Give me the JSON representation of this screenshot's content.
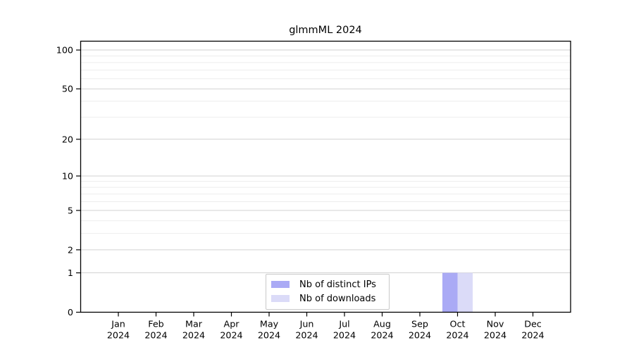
{
  "figure_title": "glmmML 2024",
  "colors": {
    "background": "#ffffff",
    "axis": "#000000",
    "grid_major": "#d2d2d2",
    "grid_minor": "#ededed",
    "legend_border": "#c9c9c9",
    "text": "#000000",
    "bar_distinct_ips": "#aaaaf5",
    "bar_downloads": "#dbdbf8"
  },
  "chart_data": {
    "type": "bar",
    "title": "glmmML 2024",
    "categories": [
      "Jan",
      "Feb",
      "Mar",
      "Apr",
      "May",
      "Jun",
      "Jul",
      "Aug",
      "Sep",
      "Oct",
      "Nov",
      "Dec"
    ],
    "category_year": "2024",
    "series": [
      {
        "name": "Nb of distinct IPs",
        "color": "#aaaaf5",
        "values": [
          0,
          0,
          0,
          0,
          0,
          0,
          0,
          0,
          0,
          1,
          0,
          0
        ]
      },
      {
        "name": "Nb of downloads",
        "color": "#dbdbf8",
        "values": [
          0,
          0,
          0,
          0,
          0,
          0,
          0,
          0,
          0,
          1,
          0,
          0
        ]
      }
    ],
    "xlabel": "",
    "ylabel": "",
    "yscale": "log1p",
    "ylim": [
      0,
      117
    ],
    "yticks": [
      0,
      1,
      2,
      5,
      10,
      20,
      50,
      100
    ],
    "yticks_minor": [
      3,
      4,
      6,
      7,
      8,
      9,
      30,
      40,
      60,
      70,
      80,
      90
    ],
    "grid": "horizontal",
    "legend_position": "bottom-center"
  }
}
